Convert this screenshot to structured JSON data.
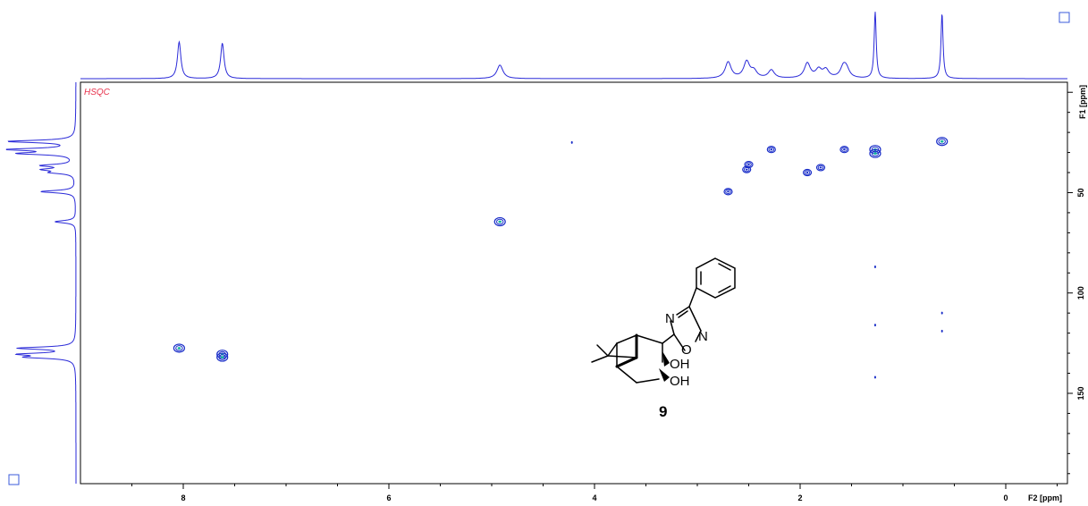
{
  "chart_data": {
    "type": "scatter",
    "experiment_label": "HSQC",
    "x_axis": {
      "label": "F2 [ppm]",
      "reversed": true,
      "xlim": [
        9.0,
        -0.6
      ],
      "ticks": [
        "8",
        "6",
        "4",
        "2",
        "0"
      ],
      "tick_values": [
        8,
        6,
        4,
        2,
        0
      ]
    },
    "y_axis": {
      "label": "F1 [ppm]",
      "reversed": true,
      "ylim": [
        -5,
        195
      ],
      "ticks": [
        "50",
        "100",
        "150"
      ],
      "tick_values": [
        50,
        100,
        150
      ]
    },
    "grid": false,
    "cross_peaks": [
      {
        "h": 8.04,
        "c": 127.5,
        "strength": "strong"
      },
      {
        "h": 7.62,
        "c": 130.5,
        "strength": "strong"
      },
      {
        "h": 7.62,
        "c": 132.0,
        "strength": "strong"
      },
      {
        "h": 4.92,
        "c": 64.5,
        "strength": "strong"
      },
      {
        "h": 4.22,
        "c": 25.0,
        "strength": "trace"
      },
      {
        "h": 2.7,
        "c": 49.5,
        "strength": "medium"
      },
      {
        "h": 2.52,
        "c": 38.5,
        "strength": "medium"
      },
      {
        "h": 2.5,
        "c": 36.0,
        "strength": "medium"
      },
      {
        "h": 2.28,
        "c": 28.5,
        "strength": "medium"
      },
      {
        "h": 1.93,
        "c": 40.0,
        "strength": "medium"
      },
      {
        "h": 1.8,
        "c": 37.5,
        "strength": "medium"
      },
      {
        "h": 1.57,
        "c": 28.5,
        "strength": "medium"
      },
      {
        "h": 1.27,
        "c": 28.5,
        "strength": "strong"
      },
      {
        "h": 1.27,
        "c": 30.5,
        "strength": "strong"
      },
      {
        "h": 0.62,
        "c": 24.5,
        "strength": "strong"
      },
      {
        "h": 1.27,
        "c": 87.0,
        "strength": "trace"
      },
      {
        "h": 1.27,
        "c": 116.0,
        "strength": "trace"
      },
      {
        "h": 0.62,
        "c": 110.0,
        "strength": "trace"
      },
      {
        "h": 0.62,
        "c": 119.0,
        "strength": "trace"
      },
      {
        "h": 1.27,
        "c": 142.0,
        "strength": "trace"
      }
    ],
    "f2_projection_peaks": [
      {
        "ppm": 8.04,
        "height": 0.54
      },
      {
        "ppm": 7.62,
        "height": 0.52
      },
      {
        "ppm": 4.92,
        "height": 0.2
      },
      {
        "ppm": 2.7,
        "height": 0.24
      },
      {
        "ppm": 2.52,
        "height": 0.24
      },
      {
        "ppm": 2.45,
        "height": 0.1
      },
      {
        "ppm": 2.28,
        "height": 0.12
      },
      {
        "ppm": 1.93,
        "height": 0.22
      },
      {
        "ppm": 1.82,
        "height": 0.12
      },
      {
        "ppm": 1.75,
        "height": 0.12
      },
      {
        "ppm": 1.58,
        "height": 0.15
      },
      {
        "ppm": 1.55,
        "height": 0.12
      },
      {
        "ppm": 1.27,
        "height": 0.98
      },
      {
        "ppm": 0.62,
        "height": 0.96
      }
    ],
    "f1_projection_peaks": [
      {
        "ppm": 24.5,
        "height": 0.95
      },
      {
        "ppm": 28.5,
        "height": 0.9
      },
      {
        "ppm": 30.5,
        "height": 0.75
      },
      {
        "ppm": 36.5,
        "height": 0.45
      },
      {
        "ppm": 38.5,
        "height": 0.4
      },
      {
        "ppm": 40.0,
        "height": 0.3
      },
      {
        "ppm": 49.5,
        "height": 0.5
      },
      {
        "ppm": 64.5,
        "height": 0.3
      },
      {
        "ppm": 127.5,
        "height": 0.8
      },
      {
        "ppm": 130.5,
        "height": 0.72
      },
      {
        "ppm": 132.0,
        "height": 0.62
      }
    ],
    "structure": {
      "compound_label": "9",
      "atom_labels": {
        "n_top": "N",
        "n_right": "N",
        "o_ring": "O",
        "oh1": "OH",
        "oh2": "OH"
      }
    }
  },
  "colors": {
    "spectrum": "#2a2ad8",
    "contour_positive": "#1a2ec8",
    "contour_inner": "#18b8a0",
    "label": "#e8334d",
    "axis": "#000000"
  },
  "icons": {
    "top_right": "square-icon",
    "bottom_left": "square-icon"
  }
}
